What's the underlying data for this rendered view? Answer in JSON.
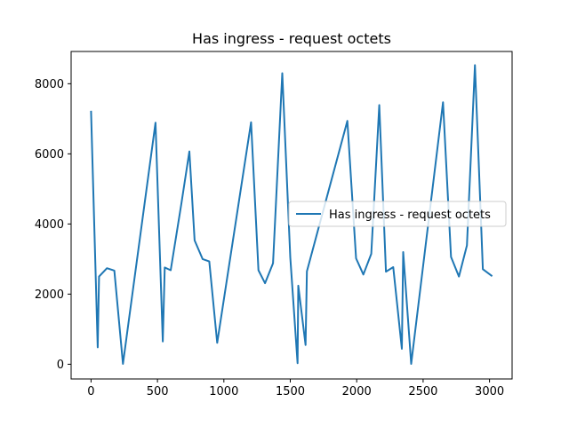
{
  "chart_data": {
    "type": "line",
    "title": "Has ingress - request octets",
    "xlabel": "",
    "ylabel": "",
    "xlim": [
      -150,
      3170
    ],
    "ylim": [
      -420,
      8920
    ],
    "x_ticks": [
      0,
      500,
      1000,
      1500,
      2000,
      2500,
      3000
    ],
    "y_ticks": [
      0,
      2000,
      4000,
      6000,
      8000
    ],
    "x_tick_labels": [
      "0",
      "500",
      "1000",
      "1500",
      "2000",
      "2500",
      "3000"
    ],
    "y_tick_labels": [
      "0",
      "2000",
      "4000",
      "6000",
      "8000"
    ],
    "grid": false,
    "legend_position": "center-right",
    "series": [
      {
        "name": "Has ingress - request octets",
        "color": "#1f77b4",
        "x": [
          0,
          50,
          60,
          120,
          175,
          240,
          485,
          540,
          555,
          600,
          680,
          740,
          780,
          840,
          890,
          950,
          1205,
          1260,
          1310,
          1370,
          1440,
          1500,
          1555,
          1560,
          1615,
          1625,
          1930,
          1995,
          2050,
          2110,
          2170,
          2220,
          2275,
          2340,
          2350,
          2410,
          2650,
          2710,
          2770,
          2830,
          2890,
          2950,
          3020
        ],
        "y": [
          7230,
          480,
          2500,
          2740,
          2670,
          10,
          6890,
          650,
          2760,
          2680,
          4580,
          6070,
          3530,
          3000,
          2930,
          610,
          6900,
          2680,
          2310,
          2880,
          8300,
          3050,
          30,
          2240,
          550,
          2650,
          6940,
          3020,
          2560,
          3150,
          7390,
          2640,
          2770,
          440,
          3200,
          10,
          7470,
          3060,
          2500,
          3390,
          8530,
          2710,
          2510
        ]
      }
    ]
  }
}
